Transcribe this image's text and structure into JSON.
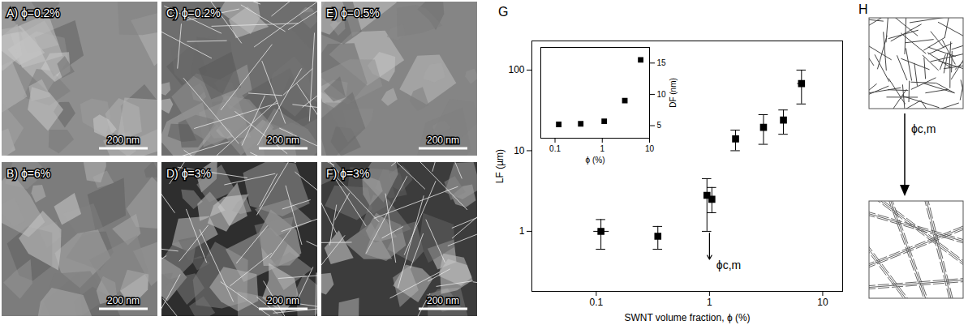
{
  "images": [
    {
      "label": "A) ϕ=0.2%",
      "scale_bar": "200 nm"
    },
    {
      "label": "B) ϕ=6%",
      "scale_bar": "200 nm"
    },
    {
      "label": "C) ϕ=0.2%",
      "scale_bar": "200 nm"
    },
    {
      "label": "D) ϕ=3%",
      "scale_bar": "200 nm"
    },
    {
      "label": "E) ϕ=0.5%",
      "scale_bar": "200 nm"
    },
    {
      "label": "F) ϕ=3%",
      "scale_bar": "200 nm"
    }
  ],
  "chart_data": [
    {
      "panel": "G",
      "type": "scatter",
      "x_label": "SWNT volume fraction, ϕ (%)",
      "y_label": "LF (µm)",
      "log": true,
      "xlim": [
        0.027,
        15
      ],
      "ylim": [
        0.18,
        230
      ],
      "xticks": [
        0.1,
        1,
        10
      ],
      "yticks": [
        1,
        10,
        100
      ],
      "marker": "square",
      "color": "#000000",
      "x": [
        0.11,
        0.35,
        0.95,
        1.05,
        1.7,
        3.0,
        4.5,
        6.5
      ],
      "values": [
        1.0,
        0.87,
        2.8,
        2.5,
        14,
        19.5,
        24,
        68
      ],
      "y_err_low": [
        0.6,
        0.6,
        1.0,
        1.7,
        10,
        12,
        16,
        38
      ],
      "y_err_high": [
        1.4,
        1.15,
        4.5,
        3.5,
        18,
        28,
        32,
        100
      ],
      "x_err_low": [
        0.095,
        null,
        null,
        null,
        null,
        null,
        null,
        6.0
      ],
      "x_err_high": [
        0.13,
        null,
        null,
        null,
        null,
        null,
        null,
        7.0
      ],
      "annotation": {
        "text": "ϕc,m",
        "x": 1,
        "arrow_from": 0.95,
        "arrow_to": 0.45,
        "text_x": 1.15,
        "text_y": 0.38
      }
    },
    {
      "type": "scatter",
      "x_label": "ϕ (%)",
      "y_label": "DF (nm)",
      "log": "x",
      "xlim": [
        0.05,
        10
      ],
      "ylim": [
        3,
        17.5
      ],
      "xticks": [
        0.1,
        1,
        10
      ],
      "yticks": [
        5,
        10,
        15
      ],
      "marker": "square",
      "color": "#000000",
      "x": [
        0.12,
        0.35,
        1.1,
        3.0,
        6.5
      ],
      "values": [
        5.2,
        5.3,
        5.7,
        9.0,
        15.5
      ]
    }
  ],
  "diagram": {
    "panel": "H",
    "arrow_label": "ϕc,m"
  }
}
